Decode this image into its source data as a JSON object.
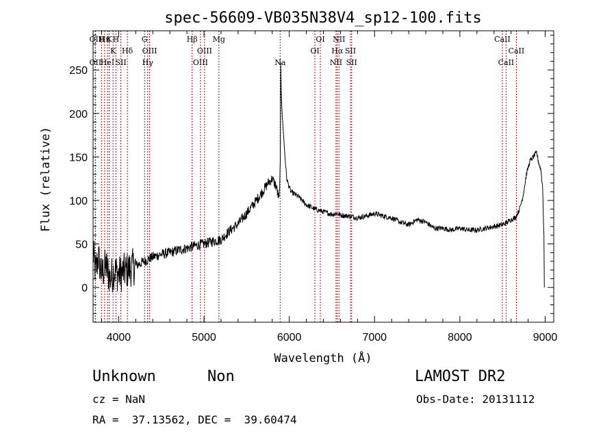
{
  "chart_data": {
    "type": "line",
    "title": "spec-56609-VB035N38V4_sp12-100.fits",
    "xlabel": "Wavelength (Å)",
    "ylabel": "Flux (relative)",
    "xlim": [
      3700,
      9100
    ],
    "ylim": [
      -40,
      295
    ],
    "xticks": [
      4000,
      5000,
      6000,
      7000,
      8000,
      9000
    ],
    "yticks": [
      0,
      50,
      100,
      150,
      200,
      250
    ],
    "grid": false,
    "line_color": "#000000",
    "marker_color": "#aa0000",
    "series": [
      {
        "x": [
          3700,
          3730,
          3760,
          3800,
          3850,
          3900,
          3950,
          4000,
          4100,
          4200,
          4300,
          4400,
          4500,
          4600,
          4700,
          4800,
          4900,
          5000,
          5100,
          5200,
          5300,
          5400,
          5500,
          5600,
          5650,
          5700,
          5750,
          5800,
          5850,
          5880,
          5895,
          5900,
          5905,
          5915,
          5930,
          5950,
          5970,
          6000,
          6020,
          6050,
          6100,
          6150,
          6200,
          6300,
          6400,
          6500,
          6560,
          6600,
          6700,
          6800,
          6900,
          7000,
          7100,
          7200,
          7300,
          7400,
          7500,
          7600,
          7700,
          7800,
          7900,
          8000,
          8100,
          8200,
          8300,
          8400,
          8500,
          8560,
          8600,
          8650,
          8700,
          8740,
          8780,
          8820,
          8860,
          8900,
          8920,
          8950,
          8970,
          8985,
          8990
        ],
        "y": [
          40,
          18,
          35,
          15,
          25,
          10,
          20,
          15,
          20,
          25,
          30,
          35,
          38,
          40,
          43,
          45,
          48,
          50,
          53,
          55,
          65,
          73,
          85,
          98,
          105,
          112,
          120,
          125,
          115,
          100,
          140,
          260,
          230,
          200,
          180,
          150,
          125,
          115,
          110,
          108,
          105,
          100,
          95,
          90,
          87,
          84,
          85,
          83,
          82,
          80,
          82,
          85,
          82,
          80,
          75,
          72,
          78,
          75,
          68,
          68,
          66,
          68,
          66,
          66,
          68,
          70,
          72,
          75,
          78,
          80,
          90,
          105,
          130,
          145,
          150,
          155,
          145,
          135,
          115,
          60,
          0
        ]
      }
    ],
    "line_markers": [
      {
        "wl": 3727,
        "label": "OII",
        "pos": "top"
      },
      {
        "wl": 3727,
        "label": "OII",
        "pos": "bottom"
      },
      {
        "wl": 3798,
        "label": "H",
        "pos": "top"
      },
      {
        "wl": 3835,
        "label": "Hη",
        "pos": "top"
      },
      {
        "wl": 3869,
        "label": "HeI",
        "pos": "bottom"
      },
      {
        "wl": 3889,
        "label": "K",
        "pos": "top"
      },
      {
        "wl": 3934,
        "label": "K",
        "pos": "mid"
      },
      {
        "wl": 3968,
        "label": "H",
        "pos": "top"
      },
      {
        "wl": 4026,
        "label": "SII",
        "pos": "bottom"
      },
      {
        "wl": 4102,
        "label": "Hδ",
        "pos": "mid"
      },
      {
        "wl": 4304,
        "label": "G",
        "pos": "top"
      },
      {
        "wl": 4340,
        "label": "Hγ",
        "pos": "bottom"
      },
      {
        "wl": 4363,
        "label": "OIII",
        "pos": "mid"
      },
      {
        "wl": 4861,
        "label": "Hβ",
        "pos": "top"
      },
      {
        "wl": 4959,
        "label": "OIII",
        "pos": "bottom"
      },
      {
        "wl": 5007,
        "label": "OIII",
        "pos": "mid"
      },
      {
        "wl": 5175,
        "label": "Mg",
        "pos": "top"
      },
      {
        "wl": 5893,
        "label": "Na",
        "pos": "bottom"
      },
      {
        "wl": 6300,
        "label": "OI",
        "pos": "mid"
      },
      {
        "wl": 6364,
        "label": "OI",
        "pos": "top"
      },
      {
        "wl": 6548,
        "label": "NII",
        "pos": "bottom"
      },
      {
        "wl": 6563,
        "label": "Hα",
        "pos": "mid"
      },
      {
        "wl": 6583,
        "label": "NII",
        "pos": "top"
      },
      {
        "wl": 6717,
        "label": "SII",
        "pos": "mid"
      },
      {
        "wl": 6731,
        "label": "SII",
        "pos": "bottom"
      },
      {
        "wl": 8498,
        "label": "CaII",
        "pos": "top"
      },
      {
        "wl": 8542,
        "label": "CaII",
        "pos": "bottom"
      },
      {
        "wl": 8662,
        "label": "CaII",
        "pos": "mid"
      }
    ]
  },
  "info": {
    "class_label": "Unknown",
    "subclass_label": "Non",
    "survey_label": "LAMOST DR2",
    "cz_line": "cz = NaN",
    "obsdate_line": "Obs-Date: 20131112",
    "radec_line": "RA =  37.13562, DEC =  39.60474"
  }
}
